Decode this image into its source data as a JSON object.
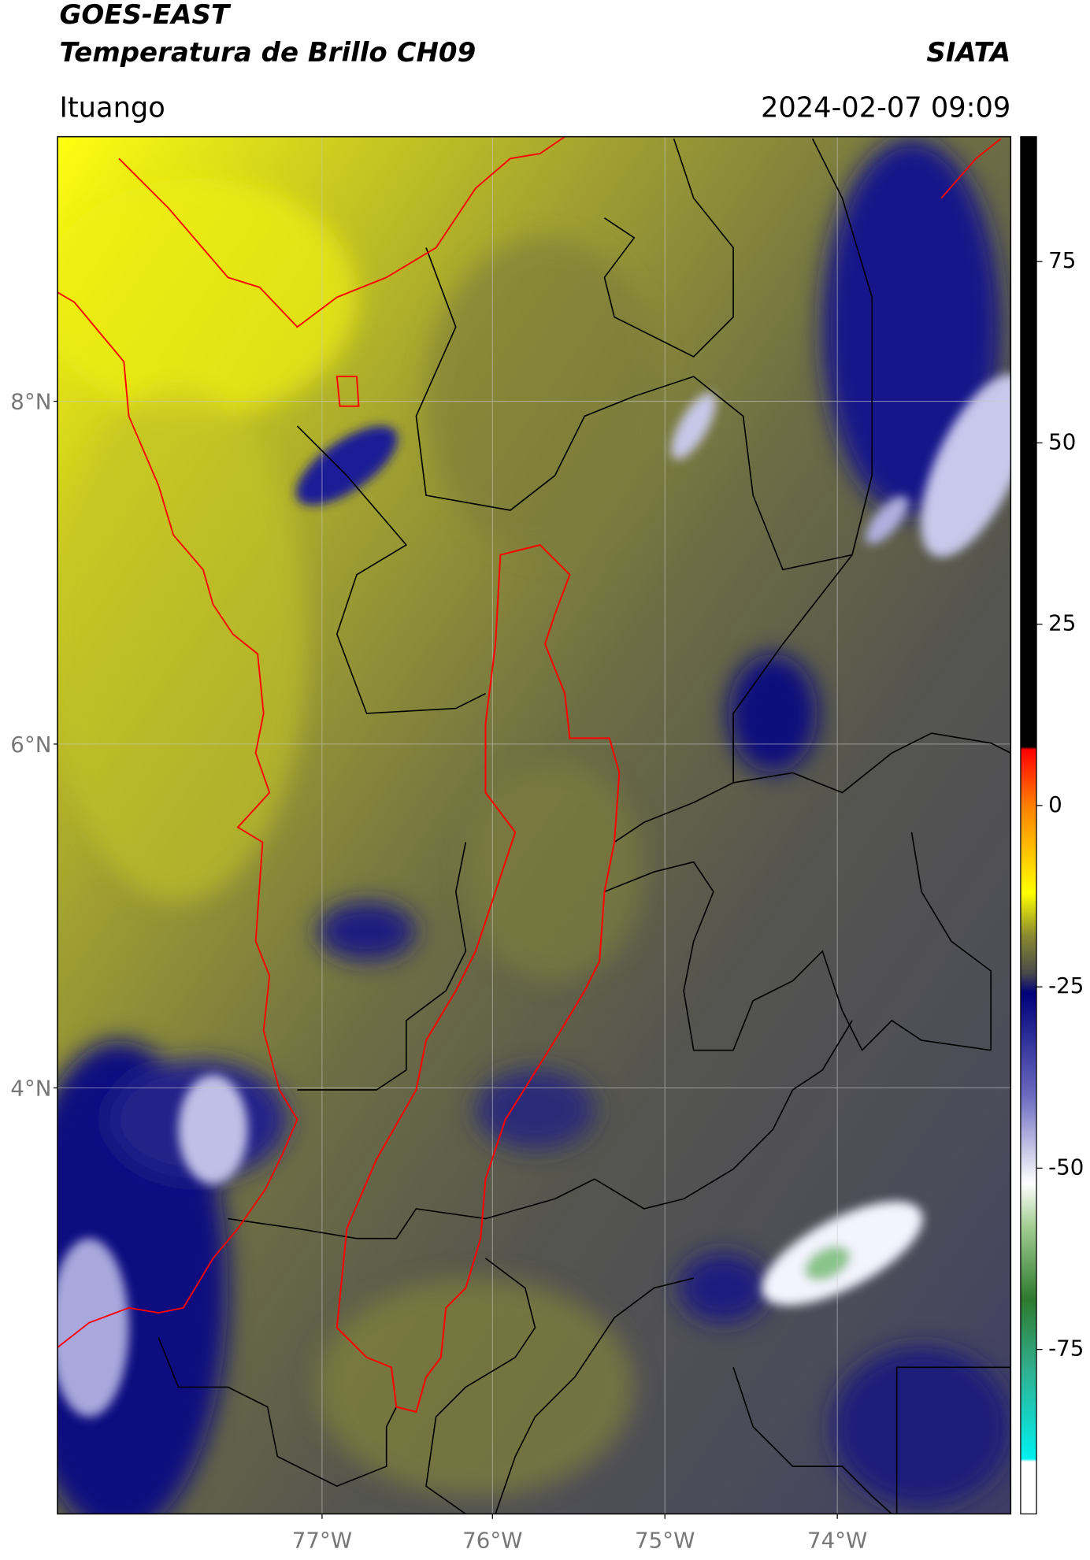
{
  "header": {
    "satellite": "GOES-EAST",
    "product": "Temperatura de Brillo CH09",
    "agency": "SIATA",
    "location": "Ituango",
    "datetime": "2024-02-07 09:09"
  },
  "map": {
    "lat_labels": [
      "8°N",
      "6°N",
      "4°N"
    ],
    "lon_labels": [
      "77°W",
      "76°W",
      "75°W",
      "74°W"
    ]
  },
  "colorbar": {
    "ticks": [
      75,
      50,
      25,
      0,
      -25,
      -50,
      -75
    ]
  }
}
